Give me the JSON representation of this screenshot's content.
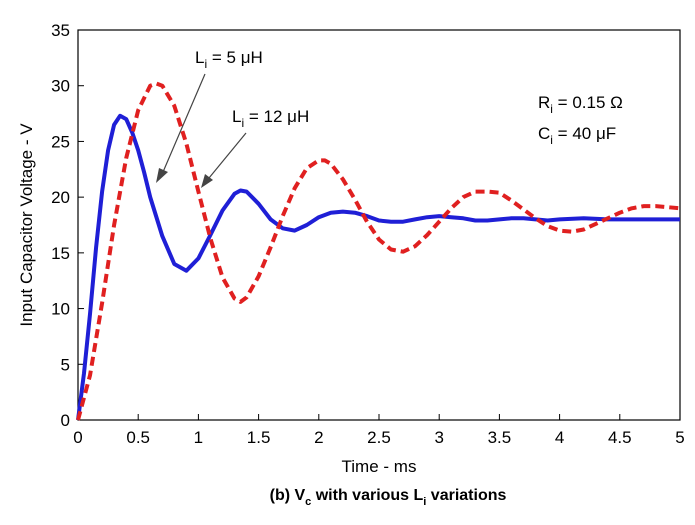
{
  "chart_data": {
    "type": "line",
    "xlabel": "Time - ms",
    "ylabel": "Input Capacitor Voltage - V",
    "xlim": [
      0,
      5
    ],
    "ylim": [
      0,
      35
    ],
    "x_ticks": [
      0,
      0.5,
      1,
      1.5,
      2,
      2.5,
      3,
      3.5,
      4,
      4.5,
      5
    ],
    "x_tick_labels": [
      "0",
      "0.5",
      "1",
      "1.5",
      "2",
      "2.5",
      "3",
      "3.5",
      "4",
      "4.5",
      "5"
    ],
    "y_ticks": [
      0,
      5,
      10,
      15,
      20,
      25,
      30,
      35
    ],
    "y_tick_labels": [
      "0",
      "5",
      "10",
      "15",
      "20",
      "25",
      "30",
      "35"
    ],
    "grid": false,
    "caption": {
      "prefix": "(b) V",
      "sub1": "c",
      "mid": " with various L",
      "sub2": "i",
      "suffix": " variations"
    },
    "annotations": [
      {
        "id": "li5",
        "main": "L",
        "sub": "i",
        "rest": " = 5 μH"
      },
      {
        "id": "li12",
        "main": "L",
        "sub": "i",
        "rest": " = 12 μH"
      },
      {
        "id": "ri",
        "main": "R",
        "sub": "i",
        "rest": " = 0.15 Ω"
      },
      {
        "id": "ci",
        "main": "C",
        "sub": "i",
        "rest": " = 40 μF"
      }
    ],
    "series": [
      {
        "color": "#1f1fd6",
        "dash": "solid",
        "x": [
          0,
          0.05,
          0.1,
          0.15,
          0.2,
          0.25,
          0.3,
          0.35,
          0.4,
          0.45,
          0.5,
          0.55,
          0.6,
          0.7,
          0.8,
          0.9,
          1.0,
          1.1,
          1.2,
          1.3,
          1.35,
          1.4,
          1.5,
          1.6,
          1.7,
          1.8,
          1.9,
          2.0,
          2.1,
          2.2,
          2.3,
          2.4,
          2.5,
          2.6,
          2.7,
          2.8,
          2.9,
          3.0,
          3.1,
          3.2,
          3.3,
          3.4,
          3.5,
          3.6,
          3.7,
          3.8,
          3.9,
          4.0,
          4.2,
          4.4,
          4.6,
          4.8,
          5.0
        ],
        "y": [
          0,
          4.2,
          9.5,
          15.5,
          20.5,
          24.2,
          26.5,
          27.3,
          27.0,
          25.8,
          24.2,
          22.2,
          20.0,
          16.5,
          14.0,
          13.4,
          14.5,
          16.6,
          18.8,
          20.3,
          20.6,
          20.5,
          19.4,
          18.0,
          17.2,
          17.0,
          17.5,
          18.2,
          18.6,
          18.7,
          18.6,
          18.3,
          17.9,
          17.8,
          17.8,
          18.0,
          18.2,
          18.3,
          18.2,
          18.1,
          17.9,
          17.9,
          18.0,
          18.1,
          18.1,
          18.0,
          17.9,
          18.0,
          18.1,
          18.0,
          18.0,
          18.0,
          18.0
        ]
      },
      {
        "color": "#e02020",
        "dash": "dashed",
        "x": [
          0,
          0.1,
          0.2,
          0.3,
          0.4,
          0.5,
          0.6,
          0.65,
          0.7,
          0.8,
          0.9,
          1.0,
          1.1,
          1.2,
          1.3,
          1.35,
          1.4,
          1.5,
          1.6,
          1.7,
          1.8,
          1.9,
          2.0,
          2.05,
          2.1,
          2.2,
          2.3,
          2.4,
          2.5,
          2.6,
          2.7,
          2.8,
          2.9,
          3.0,
          3.1,
          3.2,
          3.3,
          3.4,
          3.5,
          3.6,
          3.7,
          3.8,
          3.9,
          4.0,
          4.1,
          4.2,
          4.3,
          4.4,
          4.5,
          4.6,
          4.7,
          4.8,
          4.9,
          5.0
        ],
        "y": [
          0,
          4.0,
          10.5,
          17.5,
          23.5,
          27.8,
          30.0,
          30.2,
          30.0,
          28.2,
          24.8,
          20.5,
          16.3,
          12.8,
          10.9,
          10.6,
          11.0,
          12.9,
          15.5,
          18.3,
          20.8,
          22.6,
          23.3,
          23.3,
          23.0,
          21.6,
          19.8,
          17.8,
          16.2,
          15.3,
          15.1,
          15.6,
          16.6,
          17.8,
          19.0,
          20.0,
          20.5,
          20.5,
          20.4,
          19.7,
          18.9,
          18.1,
          17.4,
          17.0,
          16.9,
          17.1,
          17.6,
          18.1,
          18.6,
          19.0,
          19.2,
          19.2,
          19.1,
          19.0
        ]
      }
    ]
  }
}
